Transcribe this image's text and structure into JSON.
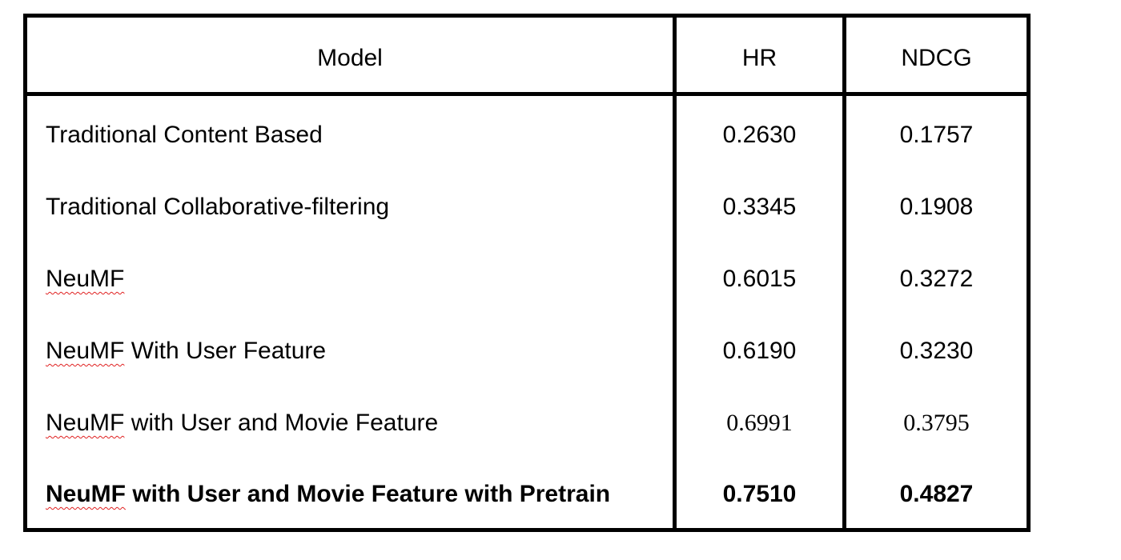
{
  "table": {
    "headers": [
      "Model",
      "HR",
      "NDCG"
    ],
    "rows": [
      {
        "model_prefix": "",
        "model_rest": "Traditional Content Based",
        "hr": "0.2630",
        "ndcg": "0.1757"
      },
      {
        "model_prefix": "",
        "model_rest": "Traditional Collaborative-filtering",
        "hr": "0.3345",
        "ndcg": "0.1908"
      },
      {
        "model_prefix": "NeuMF",
        "model_rest": "",
        "hr": "0.6015",
        "ndcg": "0.3272"
      },
      {
        "model_prefix": "NeuMF",
        "model_rest": " With User Feature",
        "hr": "0.6190",
        "ndcg": "0.3230"
      },
      {
        "model_prefix": "NeuMF",
        "model_rest": " with User and Movie Feature",
        "hr": "0.6991",
        "ndcg": "0.3795"
      },
      {
        "model_prefix": "NeuMF",
        "model_rest": " with User and Movie Feature with Pretrain",
        "hr": "0.7510",
        "ndcg": "0.4827"
      }
    ]
  },
  "colors": {
    "border": "#000000",
    "spellcheck_underline": "#e02020"
  }
}
